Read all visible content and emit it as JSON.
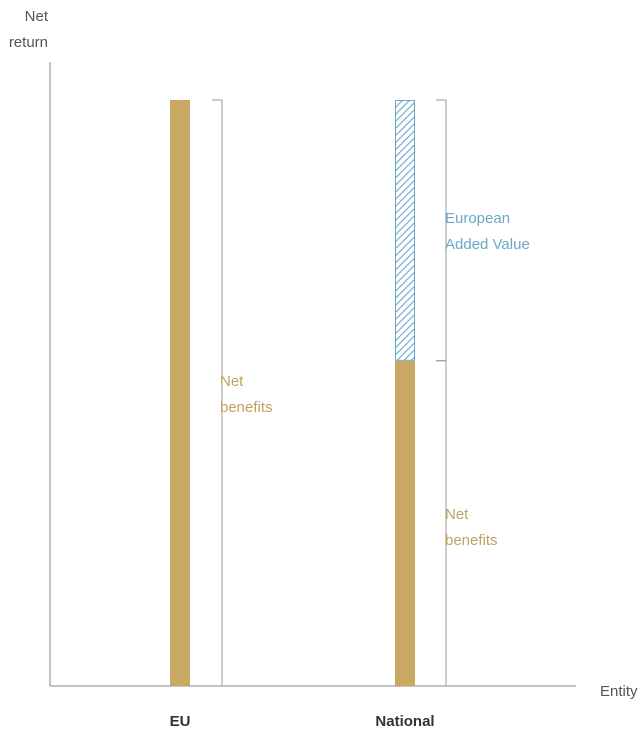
{
  "chart_data": {
    "type": "bar",
    "stacked": true,
    "categories": [
      "EU",
      "National"
    ],
    "series": [
      {
        "name": "Net benefits",
        "values": [
          100,
          55.5
        ],
        "color": "#c8a862",
        "pattern": "solid"
      },
      {
        "name": "European Added Value",
        "values": [
          0,
          44.5
        ],
        "color": "#6aa8c9",
        "pattern": "hatched"
      }
    ],
    "xlabel": "Entity",
    "ylabel": [
      "Net",
      "return"
    ],
    "ylim": [
      0,
      100
    ],
    "grid": false,
    "legend": "none",
    "annotations": [
      {
        "category": "EU",
        "text": [
          "Net",
          "benefits"
        ],
        "range": [
          0,
          100
        ],
        "color": "#c3a061"
      },
      {
        "category": "National",
        "text": [
          "European",
          "Added Value"
        ],
        "range": [
          55.5,
          100
        ],
        "color": "#6aa8c9"
      },
      {
        "category": "National",
        "text": [
          "Net",
          "benefits"
        ],
        "range": [
          0,
          55.5
        ],
        "color": "#c3a061"
      }
    ]
  }
}
